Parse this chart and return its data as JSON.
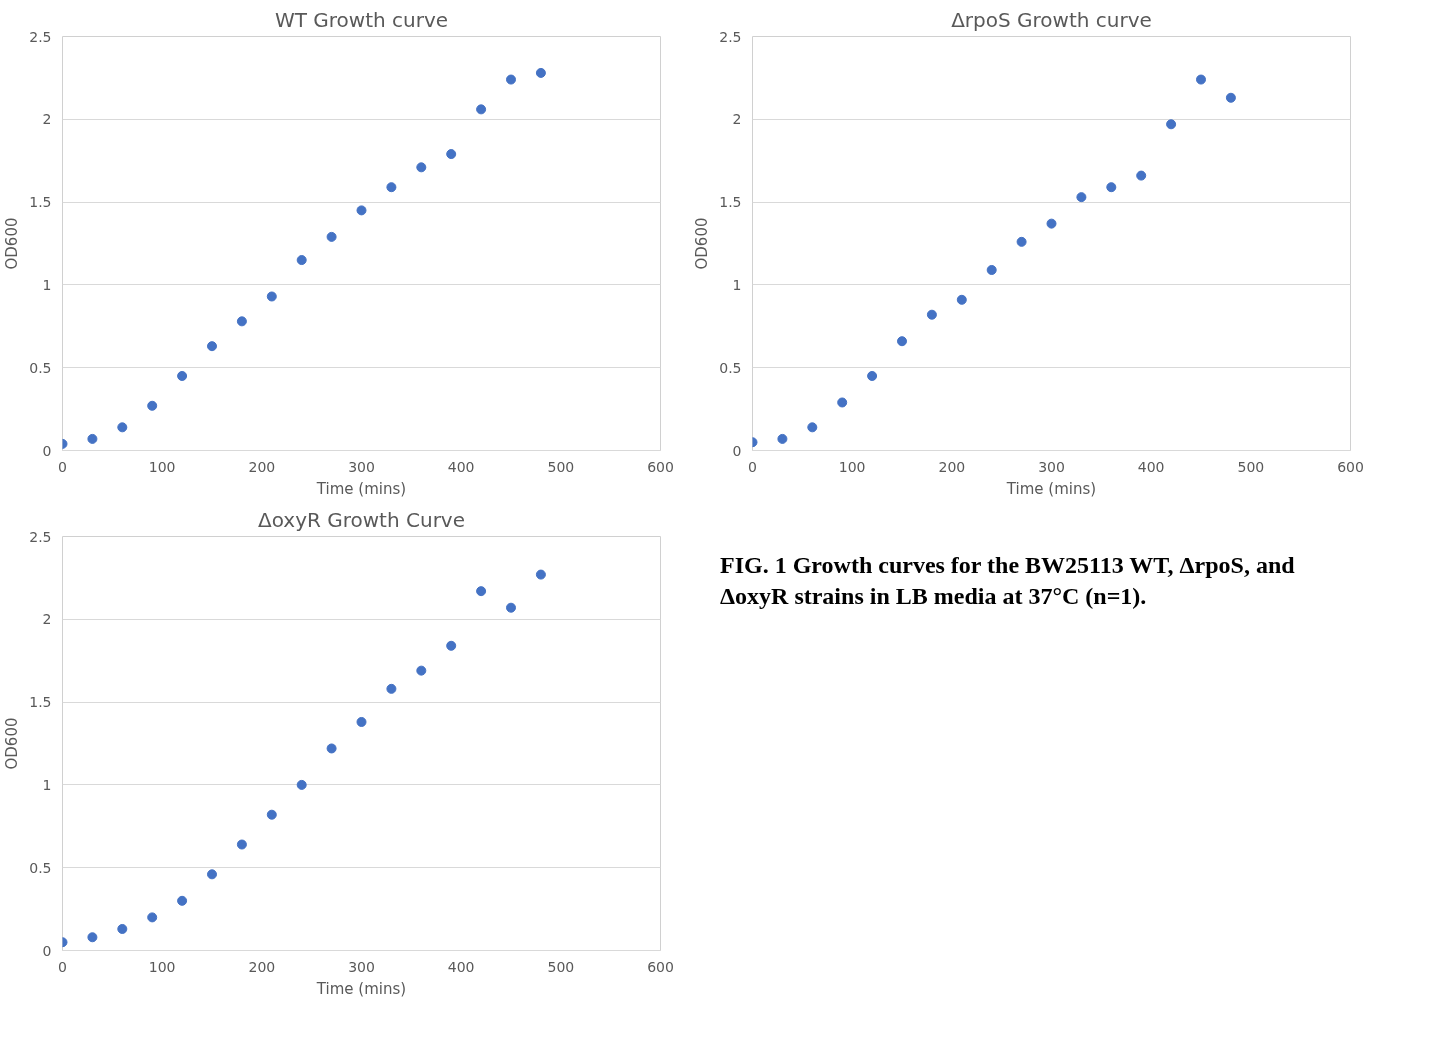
{
  "chart_data": [
    {
      "type": "scatter",
      "title": "WT Growth curve",
      "xlabel": "Time (mins)",
      "ylabel": "OD600",
      "x": [
        0,
        30,
        60,
        90,
        120,
        150,
        180,
        210,
        240,
        270,
        300,
        330,
        360,
        390,
        420,
        450,
        480
      ],
      "series": [
        {
          "color": "#4472c4",
          "values": [
            0.04,
            0.07,
            0.14,
            0.27,
            0.45,
            0.63,
            0.78,
            0.93,
            1.15,
            1.29,
            1.45,
            1.59,
            1.71,
            1.79,
            2.06,
            2.24,
            2.28
          ]
        }
      ],
      "xlim": [
        0,
        600
      ],
      "xticks": [
        0,
        100,
        200,
        300,
        400,
        500,
        600
      ],
      "ylim": [
        0,
        2.5
      ],
      "yticks": [
        0,
        0.5,
        1,
        1.5,
        2,
        2.5
      ],
      "grid": "y",
      "marker": "circle"
    },
    {
      "type": "scatter",
      "title": "ΔrpoS Growth curve",
      "xlabel": "Time (mins)",
      "ylabel": "OD600",
      "x": [
        0,
        30,
        60,
        90,
        120,
        150,
        180,
        210,
        240,
        270,
        300,
        330,
        360,
        390,
        420,
        450,
        480
      ],
      "series": [
        {
          "color": "#4472c4",
          "values": [
            0.05,
            0.07,
            0.14,
            0.29,
            0.45,
            0.66,
            0.82,
            0.91,
            1.09,
            1.26,
            1.37,
            1.53,
            1.59,
            1.66,
            1.97,
            2.24,
            2.13
          ]
        }
      ],
      "xlim": [
        0,
        600
      ],
      "xticks": [
        0,
        100,
        200,
        300,
        400,
        500,
        600
      ],
      "ylim": [
        0,
        2.5
      ],
      "yticks": [
        0,
        0.5,
        1,
        1.5,
        2,
        2.5
      ],
      "grid": "y",
      "marker": "circle"
    },
    {
      "type": "scatter",
      "title": "ΔoxyR Growth Curve",
      "xlabel": "Time (mins)",
      "ylabel": "OD600",
      "x": [
        0,
        30,
        60,
        90,
        120,
        150,
        180,
        210,
        240,
        270,
        300,
        330,
        360,
        390,
        420,
        450,
        480
      ],
      "series": [
        {
          "color": "#4472c4",
          "values": [
            0.05,
            0.08,
            0.13,
            0.2,
            0.3,
            0.46,
            0.64,
            0.82,
            1.0,
            1.22,
            1.38,
            1.58,
            1.69,
            1.84,
            2.17,
            2.07,
            2.27
          ]
        }
      ],
      "xlim": [
        0,
        600
      ],
      "xticks": [
        0,
        100,
        200,
        300,
        400,
        500,
        600
      ],
      "ylim": [
        0,
        2.5
      ],
      "yticks": [
        0,
        0.5,
        1,
        1.5,
        2,
        2.5
      ],
      "grid": "y",
      "marker": "circle"
    },
    {
      "type": "other",
      "annotations": [
        "FIG. 1 Growth curves for the BW25113 WT, ΔrpoS, and ΔoxyR strains in LB media at 37°C (n=1)."
      ]
    }
  ]
}
